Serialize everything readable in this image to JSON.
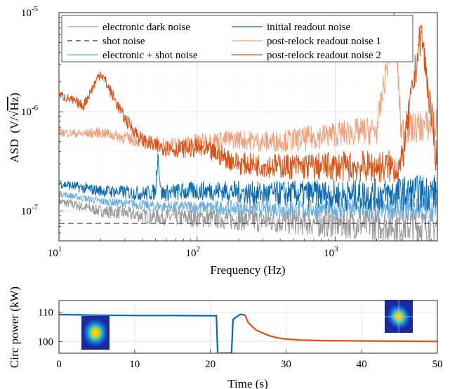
{
  "chart_data": [
    {
      "type": "line",
      "xscale": "log",
      "yscale": "log",
      "xlim": [
        10,
        5500
      ],
      "ylim": [
        5e-08,
        1e-05
      ],
      "xlabel": "Frequency (Hz)",
      "ylabel_prefix": "ASD",
      "ylabel_unit_left": "(V/",
      "ylabel_unit_sqrt": "√",
      "ylabel_unit_hz": "Hz",
      "ylabel_unit_right": ")",
      "x_ticks": [
        {
          "value": 10,
          "base": "10",
          "exp": "1"
        },
        {
          "value": 100,
          "base": "10",
          "exp": "2"
        },
        {
          "value": 1000,
          "base": "10",
          "exp": "3"
        }
      ],
      "y_ticks": [
        {
          "value": 1e-07,
          "base": "10",
          "exp": "-7"
        },
        {
          "value": 1e-06,
          "base": "10",
          "exp": "-6"
        },
        {
          "value": 1e-05,
          "base": "10",
          "exp": "-5"
        }
      ],
      "grid": true,
      "legend_position": "top",
      "series": [
        {
          "name": "electronic dark noise",
          "color": "#999999",
          "dash": false,
          "x": [
            10,
            15,
            20,
            30,
            40,
            50,
            70,
            100,
            150,
            200,
            300,
            500,
            700,
            1000,
            2000,
            3000,
            5500
          ],
          "y": [
            1.25e-07,
            1.1e-07,
            1e-07,
            9.5e-08,
            9e-08,
            8.8e-08,
            8.6e-08,
            8.5e-08,
            8.4e-08,
            8.2e-08,
            8e-08,
            7.8e-08,
            7.6e-08,
            7.5e-08,
            7.3e-08,
            7.2e-08,
            7e-08
          ]
        },
        {
          "name": "shot noise",
          "color": "#333333",
          "dash": true,
          "x": [
            10,
            5500
          ],
          "y": [
            7.5e-08,
            7.5e-08
          ]
        },
        {
          "name": "electronic + shot noise",
          "color": "#6aaee0",
          "dash": false,
          "x": [
            10,
            15,
            20,
            30,
            40,
            50,
            70,
            100,
            150,
            200,
            300,
            500,
            700,
            1000,
            2000,
            3000,
            5500
          ],
          "y": [
            1.5e-07,
            1.35e-07,
            1.25e-07,
            1.2e-07,
            1.15e-07,
            1.12e-07,
            1.1e-07,
            1.1e-07,
            1.08e-07,
            1.07e-07,
            1.06e-07,
            1.05e-07,
            1.05e-07,
            1.04e-07,
            1.04e-07,
            1.05e-07,
            1.05e-07
          ]
        },
        {
          "name": "initial readout noise",
          "color": "#0b6aaf",
          "dash": false,
          "x": [
            10,
            15,
            20,
            30,
            40,
            50,
            52,
            55,
            70,
            100,
            150,
            200,
            300,
            500,
            700,
            1000,
            2000,
            3000,
            5500
          ],
          "y": [
            1.9e-07,
            1.7e-07,
            1.6e-07,
            1.55e-07,
            1.5e-07,
            1.55e-07,
            3.8e-07,
            1.5e-07,
            1.55e-07,
            1.6e-07,
            1.6e-07,
            1.55e-07,
            1.5e-07,
            1.5e-07,
            1.5e-07,
            1.45e-07,
            1.45e-07,
            1.5e-07,
            1.55e-07
          ]
        },
        {
          "name": "post-relock readout noise 1",
          "color": "#f2a07b",
          "dash": false,
          "x": [
            10,
            15,
            20,
            30,
            40,
            50,
            70,
            100,
            150,
            200,
            300,
            500,
            700,
            1000,
            2000,
            2700,
            3000,
            4000,
            5500
          ],
          "y": [
            6.2e-07,
            6e-07,
            6.2e-07,
            5.5e-07,
            5e-07,
            4.8e-07,
            4.6e-07,
            5e-07,
            5.2e-07,
            5.3e-07,
            5e-07,
            5.2e-07,
            5.5e-07,
            6e-07,
            6.5e-07,
            9e-06,
            6.5e-07,
            7e-07,
            7.5e-07
          ]
        },
        {
          "name": "post-relock readout noise 2",
          "color": "#d95319",
          "dash": false,
          "x": [
            10,
            15,
            20,
            30,
            40,
            50,
            70,
            100,
            150,
            200,
            300,
            500,
            700,
            1000,
            2000,
            3000,
            4200,
            5500
          ],
          "y": [
            1.5e-06,
            1.15e-06,
            2.5e-06,
            8.5e-07,
            5.2e-07,
            4.5e-07,
            4.2e-07,
            4.3e-07,
            3.6e-07,
            3e-07,
            2.9e-07,
            2.8e-07,
            2.8e-07,
            2.8e-07,
            2.8e-07,
            2.8e-07,
            6.5e-06,
            2.8e-07
          ]
        }
      ]
    },
    {
      "type": "line",
      "xlim": [
        0,
        50
      ],
      "ylim": [
        96,
        114
      ],
      "xlabel": "Time (s)",
      "ylabel": "Circ power (kW)",
      "x_ticks": [
        0,
        10,
        20,
        30,
        40,
        50
      ],
      "y_ticks": [
        100,
        110
      ],
      "grid": true,
      "series": [
        {
          "color": "#0b6aaf",
          "x": [
            0,
            5,
            10,
            15,
            20,
            20.8,
            21.0,
            21.3,
            22.8,
            23.0,
            23.5,
            24.0,
            24.6
          ],
          "y": [
            109.2,
            109.0,
            108.9,
            108.9,
            108.8,
            108.8,
            94,
            96,
            96,
            107.5,
            108.5,
            109.3,
            109.0
          ]
        },
        {
          "color": "#d95319",
          "x": [
            24.6,
            25,
            26,
            27,
            28,
            29,
            30,
            32,
            35,
            40,
            45,
            50
          ],
          "y": [
            109.0,
            106.5,
            104.0,
            102.8,
            101.8,
            101.2,
            100.8,
            100.5,
            100.3,
            100.2,
            100.1,
            100.0
          ]
        }
      ]
    }
  ]
}
